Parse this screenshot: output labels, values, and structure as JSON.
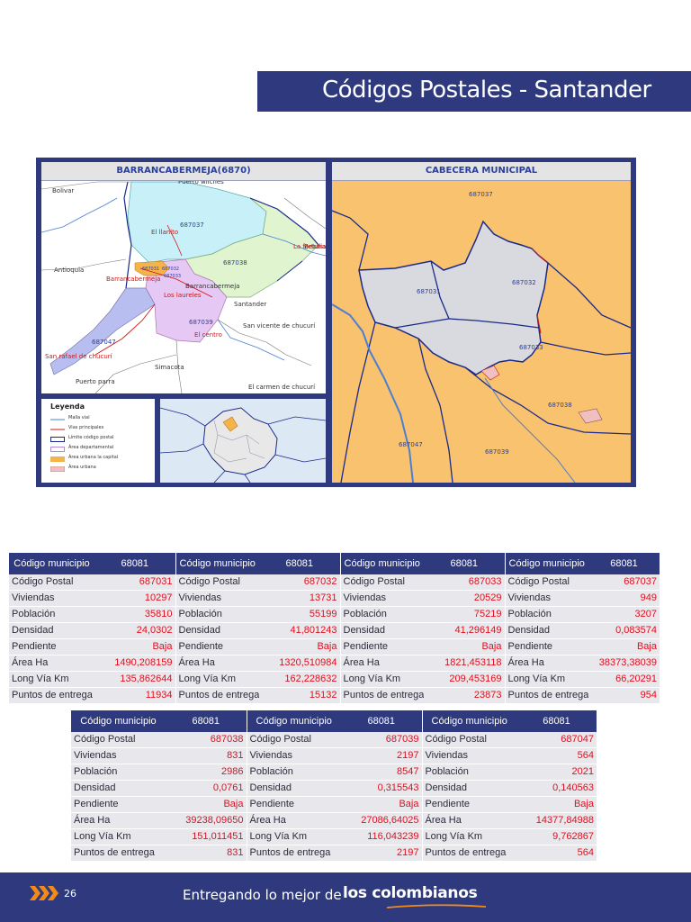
{
  "title": "Códigos Postales - Santander",
  "map": {
    "left_panel_title": "BARRANCABERMEJA(6870)",
    "right_panel_title": "CABECERA MUNICIPAL",
    "region_labels": {
      "bolivar": "Bolivar",
      "antioquia": "Antioquia",
      "santander": "Santander",
      "barrancabermeja": "Barrancabermeja",
      "simacota": "Simacota",
      "puerto_parra": "Puerto parra",
      "san_vicente": "San vicente de chucurí",
      "el_carmen": "El carmen de chucurí",
      "betulia": "Betulia",
      "puerto_wilches": "Puerto wilches"
    },
    "place_labels": {
      "el_llanito": "El llanito",
      "la_fortuna": "La fortuna",
      "barrancabermeja_red": "Barrancabermeja",
      "los_laureles": "Los laureles",
      "el_centro": "El centro",
      "san_rafael": "San rafael de chucurí"
    },
    "left_codes": [
      "687037",
      "687038",
      "687039",
      "687047",
      "687031",
      "687032",
      "687033"
    ],
    "right_codes": {
      "c37": "687037",
      "c31": "687031",
      "c32": "687032",
      "c33": "687033",
      "c38": "687038",
      "c47": "687047",
      "c39": "687039"
    },
    "legend": {
      "title": "Leyenda",
      "items": [
        {
          "label": "Malla vial",
          "color": "#4a7fd4",
          "kind": "line"
        },
        {
          "label": "Vias principales",
          "color": "#d21414",
          "kind": "line"
        },
        {
          "label": "Límite código postal",
          "color": "#1a2a8a",
          "kind": "box"
        },
        {
          "label": "Área departamental",
          "color": "#b48ad8",
          "kind": "box"
        },
        {
          "label": "Área urbana la capital",
          "color": "#f5b449",
          "kind": "fill"
        },
        {
          "label": "Área urbana",
          "color": "#f0c0c0",
          "kind": "fill"
        }
      ]
    }
  },
  "table1": {
    "header_label": "Código municipio",
    "header_value": "68081",
    "row_labels": [
      "Código Postal",
      "Viviendas",
      "Población",
      "Densidad",
      "Pendiente",
      "Área Ha",
      "Long Vía Km",
      "Puntos de entrega"
    ],
    "columns": [
      [
        "687031",
        "10297",
        "35810",
        "24,0302",
        "Baja",
        "1490,208159",
        "135,862644",
        "11934"
      ],
      [
        "687032",
        "13731",
        "55199",
        "41,801243",
        "Baja",
        "1320,510984",
        "162,228632",
        "15132"
      ],
      [
        "687033",
        "20529",
        "75219",
        "41,296149",
        "Baja",
        "1821,453118",
        "209,453169",
        "23873"
      ],
      [
        "687037",
        "949",
        "3207",
        "0,083574",
        "Baja",
        "38373,38039",
        "66,20291",
        "954"
      ]
    ]
  },
  "table2": {
    "header_label": "Código municipio",
    "header_value": "68081",
    "row_labels": [
      "Código Postal",
      "Viviendas",
      "Población",
      "Densidad",
      "Pendiente",
      "Área Ha",
      "Long Vía Km",
      "Puntos de entrega"
    ],
    "columns": [
      [
        "687038",
        "831",
        "2986",
        "0,0761",
        "Baja",
        "39238,09650",
        "151,011451",
        "831"
      ],
      [
        "687039",
        "2197",
        "8547",
        "0,315543",
        "Baja",
        "27086,64025",
        "116,043239",
        "2197"
      ],
      [
        "687047",
        "564",
        "2021",
        "0,140563",
        "Baja",
        "14377,84988",
        "9,762867",
        "564"
      ]
    ]
  },
  "footer": {
    "page_number": "26",
    "tagline": "Entregando lo mejor de",
    "brand": "los colombianos"
  }
}
